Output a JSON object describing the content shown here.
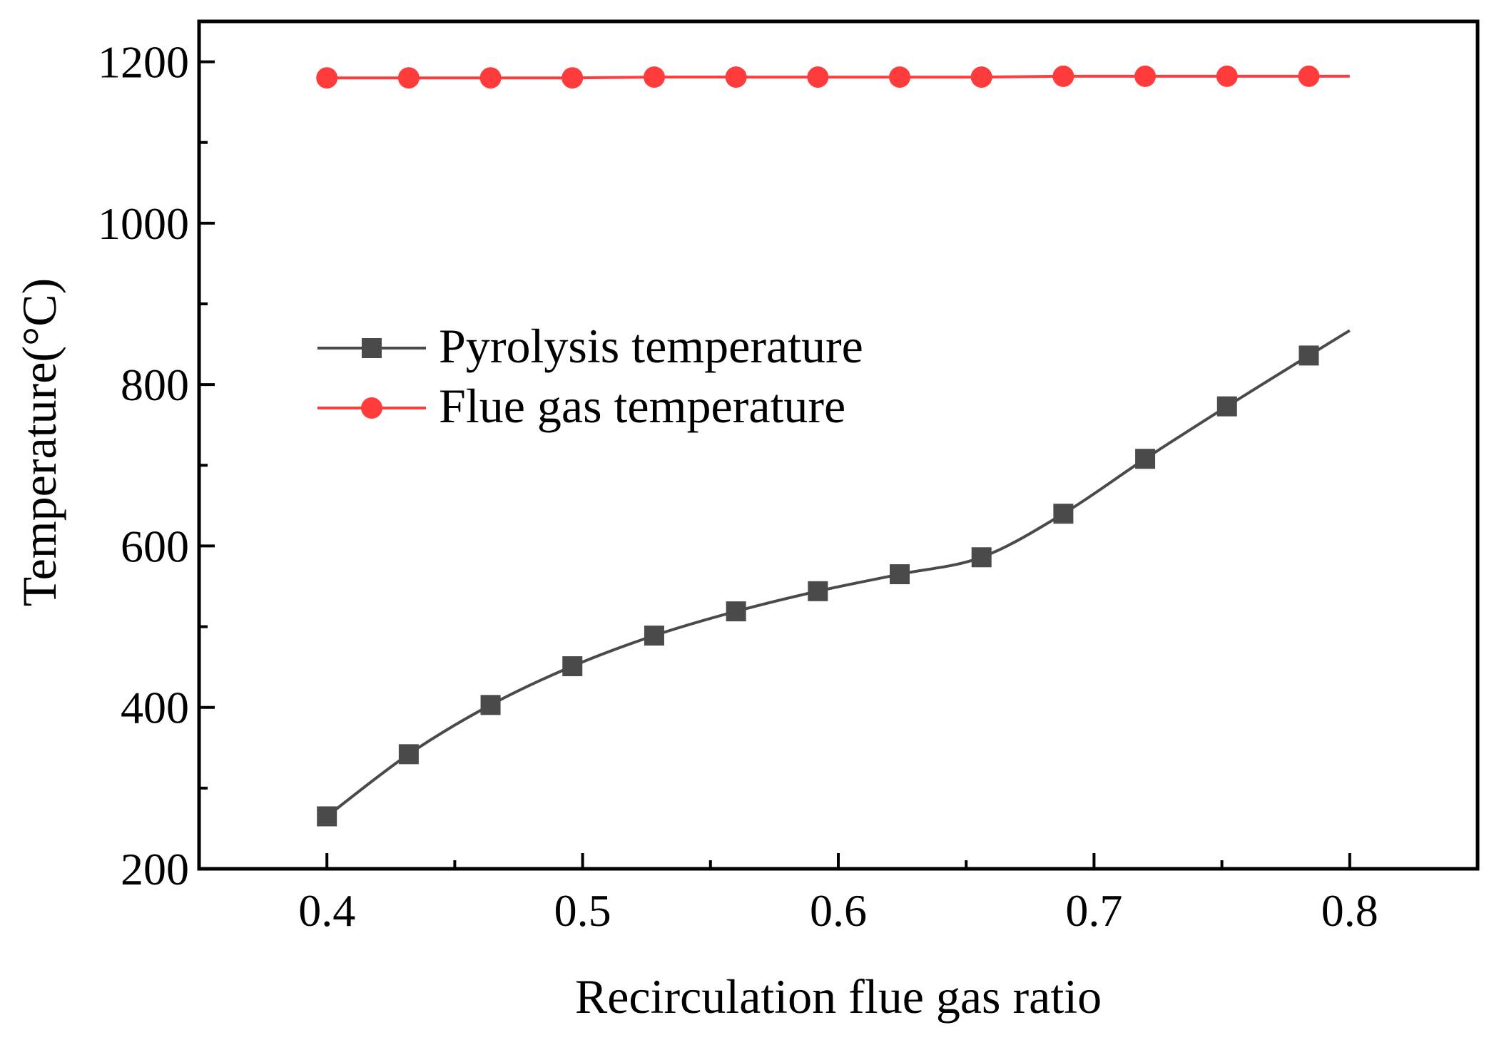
{
  "chart_data": {
    "type": "line",
    "title": "",
    "xlabel": "Recirculation flue gas ratio",
    "ylabel": "Temperature(°C)",
    "xlim": [
      0.35,
      0.85
    ],
    "ylim": [
      200,
      1250
    ],
    "xticks": [
      0.4,
      0.5,
      0.6,
      0.7,
      0.8
    ],
    "xtick_labels": [
      "0.4",
      "0.5",
      "0.6",
      "0.7",
      "0.8"
    ],
    "yticks": [
      200,
      400,
      600,
      800,
      1000,
      1200
    ],
    "ytick_labels": [
      "200",
      "400",
      "600",
      "800",
      "1000",
      "1200"
    ],
    "grid": false,
    "legend_position": "center-left",
    "series": [
      {
        "name": "Pyrolysis temperature",
        "color": "#4a4a4a",
        "marker": "square",
        "x": [
          0.4,
          0.432,
          0.464,
          0.496,
          0.528,
          0.56,
          0.592,
          0.624,
          0.656,
          0.688,
          0.72,
          0.752,
          0.784
        ],
        "values": [
          265,
          342,
          403,
          451,
          489,
          519,
          544,
          565,
          586,
          640,
          708,
          773,
          836
        ],
        "line_end": {
          "x": 0.8,
          "value": 867
        }
      },
      {
        "name": "Flue gas temperature",
        "color": "#ff3b3b",
        "marker": "circle",
        "x": [
          0.4,
          0.432,
          0.464,
          0.496,
          0.528,
          0.56,
          0.592,
          0.624,
          0.656,
          0.688,
          0.72,
          0.752,
          0.784
        ],
        "values": [
          1180,
          1180,
          1180,
          1180,
          1181,
          1181,
          1181,
          1181,
          1181,
          1182,
          1182,
          1182,
          1182
        ],
        "line_end": {
          "x": 0.8,
          "value": 1182
        }
      }
    ]
  }
}
